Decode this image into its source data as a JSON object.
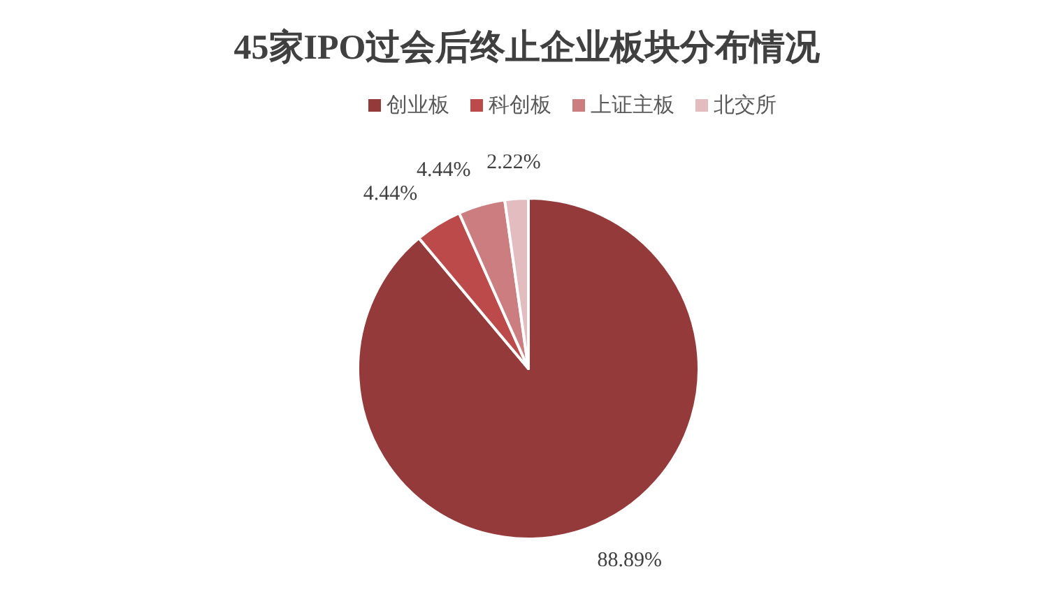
{
  "chart_data": {
    "type": "pie",
    "title": "45家IPO过会后终止企业板块分布情况",
    "categories": [
      "创业板",
      "科创板",
      "上证主板",
      "北交所"
    ],
    "values": [
      88.89,
      4.44,
      4.44,
      2.22
    ],
    "colors": [
      "#953a3a",
      "#bd4a4a",
      "#cc7d80",
      "#e3bcbf"
    ],
    "value_labels": [
      "88.89%",
      "4.44%",
      "4.44%",
      "2.22%"
    ],
    "legend": "top"
  }
}
